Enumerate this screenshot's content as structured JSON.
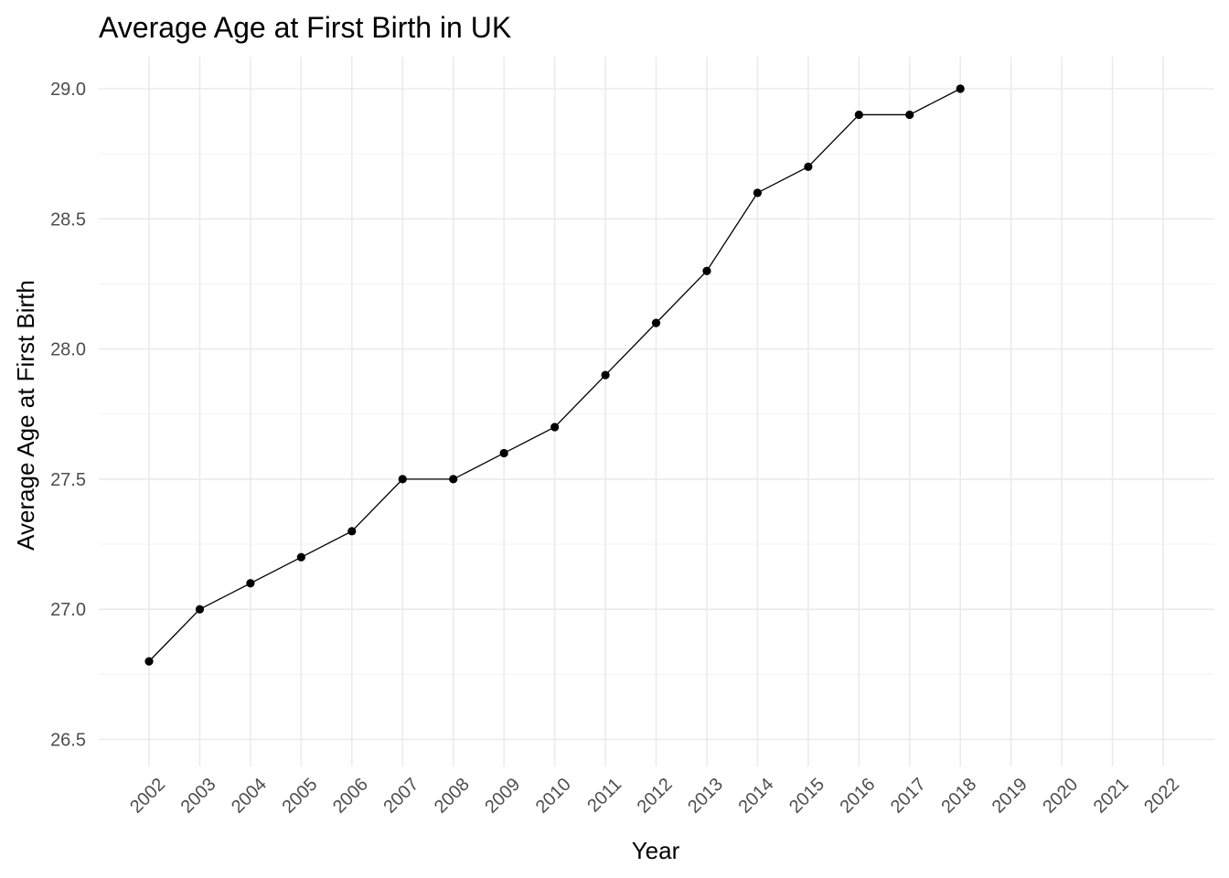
{
  "chart_data": {
    "type": "line",
    "title": "Average Age at First Birth in UK",
    "xlabel": "Year",
    "ylabel": "Average Age at First Birth",
    "x_ticks": [
      "2002",
      "2003",
      "2004",
      "2005",
      "2006",
      "2007",
      "2008",
      "2009",
      "2010",
      "2011",
      "2012",
      "2013",
      "2014",
      "2015",
      "2016",
      "2017",
      "2018",
      "2019",
      "2020",
      "2021",
      "2022"
    ],
    "y_ticks": [
      "26.5",
      "27.0",
      "27.5",
      "28.0",
      "28.5",
      "29.0"
    ],
    "xlim": [
      2002,
      2022
    ],
    "ylim": [
      26.5,
      29.0
    ],
    "grid": true,
    "series": [
      {
        "x": [
          2002,
          2003,
          2004,
          2005,
          2006,
          2007,
          2008,
          2009,
          2010,
          2011,
          2012,
          2013,
          2014,
          2015,
          2016,
          2017,
          2018
        ],
        "values": [
          26.8,
          27.0,
          27.1,
          27.2,
          27.3,
          27.5,
          27.5,
          27.6,
          27.7,
          27.9,
          28.1,
          28.3,
          28.6,
          28.7,
          28.9,
          28.9,
          29.0
        ]
      }
    ],
    "colors": {
      "line": "#000000",
      "point": "#000000",
      "grid": "#ebebeb",
      "tick_text": "#4d4d4d"
    }
  }
}
